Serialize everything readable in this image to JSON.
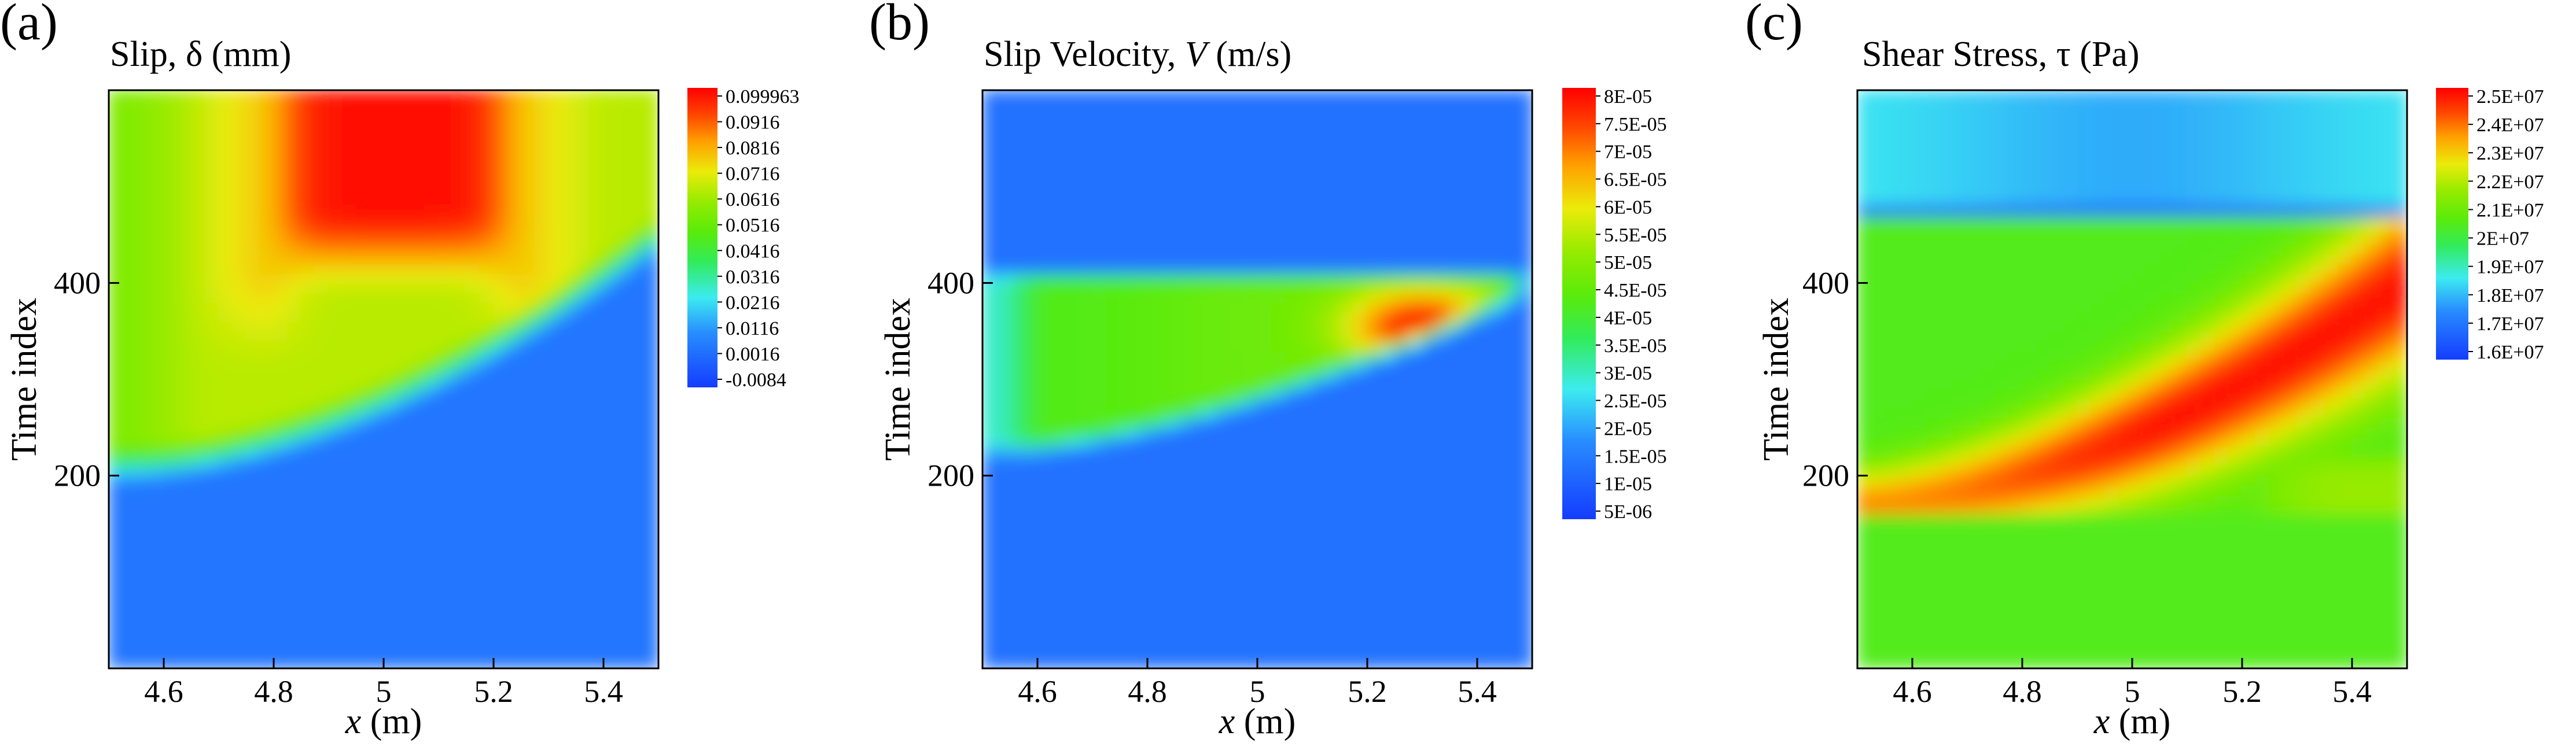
{
  "figure": {
    "background": "#ffffff"
  },
  "chart_data": [
    {
      "type": "heatmap",
      "panel_label": "(a)",
      "title_text": "Slip, ",
      "title_symbol": "δ",
      "title_unit": "  (mm)",
      "xlabel_var": "x",
      "xlabel_unit": " (m)",
      "ylabel": "Time index",
      "xlim": [
        4.5,
        5.5
      ],
      "ylim": [
        0,
        600
      ],
      "x_ticks": [
        {
          "value": 4.6,
          "label": "4.6"
        },
        {
          "value": 4.8,
          "label": "4.8"
        },
        {
          "value": 5.0,
          "label": "5"
        },
        {
          "value": 5.2,
          "label": "5.2"
        },
        {
          "value": 5.4,
          "label": "5.4"
        }
      ],
      "y_ticks": [
        {
          "value": 200,
          "label": "200"
        },
        {
          "value": 400,
          "label": "400"
        }
      ],
      "colorbar": {
        "min": -0.0084,
        "max": 0.099963,
        "labels": [
          "0.099963",
          "0.0916",
          "0.0816",
          "0.0716",
          "0.0616",
          "0.0516",
          "0.0416",
          "0.0316",
          "0.0216",
          "0.0116",
          "0.0016",
          "-0.0084"
        ]
      },
      "field": "slip"
    },
    {
      "type": "heatmap",
      "panel_label": "(b)",
      "title_text": "Slip Velocity,  ",
      "title_symbol": "V",
      "title_unit": "  (m/s)",
      "xlabel_var": "x",
      "xlabel_unit": " (m)",
      "ylabel": "Time index",
      "xlim": [
        4.5,
        5.5
      ],
      "ylim": [
        0,
        600
      ],
      "x_ticks": [
        {
          "value": 4.6,
          "label": "4.6"
        },
        {
          "value": 4.8,
          "label": "4.8"
        },
        {
          "value": 5.0,
          "label": "5"
        },
        {
          "value": 5.2,
          "label": "5.2"
        },
        {
          "value": 5.4,
          "label": "5.4"
        }
      ],
      "y_ticks": [
        {
          "value": 200,
          "label": "200"
        },
        {
          "value": 400,
          "label": "400"
        }
      ],
      "colorbar": {
        "min": 5e-06,
        "max": 8e-05,
        "labels": [
          "8E-05",
          "7.5E-05",
          "7E-05",
          "6.5E-05",
          "6E-05",
          "5.5E-05",
          "5E-05",
          "4.5E-05",
          "4E-05",
          "3.5E-05",
          "3E-05",
          "2.5E-05",
          "2E-05",
          "1.5E-05",
          "1E-05",
          "5E-06"
        ]
      },
      "field": "velocity"
    },
    {
      "type": "heatmap",
      "panel_label": "(c)",
      "title_text": "Shear Stress,  ",
      "title_symbol": "τ",
      "title_unit": " (Pa)",
      "xlabel_var": "x",
      "xlabel_unit": " (m)",
      "ylabel": "Time index",
      "xlim": [
        4.5,
        5.5
      ],
      "ylim": [
        0,
        600
      ],
      "x_ticks": [
        {
          "value": 4.6,
          "label": "4.6"
        },
        {
          "value": 4.8,
          "label": "4.8"
        },
        {
          "value": 5.0,
          "label": "5"
        },
        {
          "value": 5.2,
          "label": "5.2"
        },
        {
          "value": 5.4,
          "label": "5.4"
        }
      ],
      "y_ticks": [
        {
          "value": 200,
          "label": "200"
        },
        {
          "value": 400,
          "label": "400"
        }
      ],
      "colorbar": {
        "min": 16000000.0,
        "max": 25000000.0,
        "labels": [
          "2.5E+07",
          "2.4E+07",
          "2.3E+07",
          "2.2E+07",
          "2.1E+07",
          "2E+07",
          "1.9E+07",
          "1.8E+07",
          "1.7E+07",
          "1.6E+07"
        ]
      },
      "field": "stress"
    }
  ]
}
